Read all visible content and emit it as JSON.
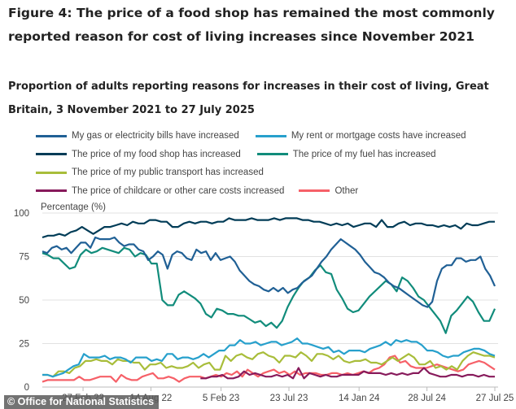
{
  "title": "Figure 4: The price of a food shop has remained the most commonly reported reason for cost of living increases since November 2021",
  "subtitle": "Proportion of adults reporting reasons for increases in their cost of living, Great Britain, 3 November 2021 to 27 July 2025",
  "credit": "© Office for National Statistics",
  "chart_data": {
    "type": "line",
    "title": "Proportion of adults reporting reasons for increases in their cost of living, Great Britain, 3 November 2021 to 27 July 2025",
    "ylabel": "Percentage (%)",
    "xlabel": "",
    "ylim": [
      0,
      100
    ],
    "yticks": [
      0,
      25,
      50,
      75,
      100
    ],
    "xticks": [
      "27 Feb 22",
      "14 Aug 22",
      "5 Feb 23",
      "23 Jul 23",
      "14 Jan 24",
      "28 Jul 24",
      "27 Jul 25"
    ],
    "xtick_positions": [
      0.09,
      0.24,
      0.395,
      0.545,
      0.7,
      0.85,
      1.0
    ],
    "grid": true,
    "legend_position": "top",
    "series": [
      {
        "name": "My gas or electricity bills have increased",
        "color": "#206095",
        "values": [
          78,
          77,
          80,
          81,
          79,
          80,
          77,
          80,
          83,
          83,
          80,
          86,
          85,
          85,
          85,
          86,
          83,
          81,
          82,
          82,
          79,
          78,
          73,
          75,
          78,
          76,
          68,
          76,
          78,
          77,
          74,
          73,
          79,
          77,
          78,
          73,
          77,
          73,
          74,
          75,
          72,
          67,
          64,
          61,
          59,
          58,
          56,
          55,
          57,
          55,
          57,
          54,
          56,
          57,
          60,
          62,
          64,
          68,
          72,
          75,
          79,
          82,
          85,
          83,
          81,
          79,
          76,
          72,
          69,
          66,
          65,
          63,
          60,
          58,
          57,
          55,
          53,
          51,
          49,
          47,
          46,
          49,
          61,
          68,
          70,
          70,
          74,
          74,
          72,
          73,
          73,
          75,
          68,
          64,
          58
        ]
      },
      {
        "name": "My rent or mortgage costs have increased",
        "color": "#27A0CC",
        "values": [
          7,
          7,
          6,
          7,
          8,
          10,
          12,
          13,
          19,
          17,
          17,
          17,
          18,
          16,
          17,
          17,
          16,
          14,
          17,
          17,
          17,
          15,
          16,
          15,
          19,
          19,
          16,
          17,
          17,
          16,
          17,
          19,
          17,
          19,
          21,
          21,
          24,
          24,
          27,
          25,
          25,
          26,
          24,
          25,
          26,
          26,
          24,
          25,
          26,
          28,
          25,
          25,
          24,
          23,
          22,
          23,
          20,
          21,
          19,
          21,
          21,
          21,
          20,
          22,
          23,
          24,
          26,
          24,
          27,
          26,
          27,
          26,
          26,
          24,
          21,
          21,
          20,
          18,
          17,
          18,
          18,
          20,
          21,
          22,
          22,
          21,
          19,
          18
        ]
      },
      {
        "name": "The price of my food shop has increased",
        "color": "#003C57",
        "values": [
          86,
          87,
          87,
          88,
          87,
          89,
          90,
          92,
          90,
          88,
          90,
          92,
          92,
          93,
          94,
          93,
          95,
          94,
          94,
          96,
          96,
          95,
          95,
          92,
          92,
          94,
          95,
          94,
          95,
          95,
          94,
          95,
          95,
          97,
          96,
          96,
          96,
          97,
          96,
          96,
          96,
          97,
          96,
          97,
          97,
          97,
          96,
          96,
          95,
          95,
          94,
          93,
          94,
          93,
          94,
          92,
          93,
          94,
          94,
          92,
          96,
          92,
          92,
          94,
          95,
          93,
          94,
          94,
          93,
          93,
          92,
          93,
          92,
          93,
          91,
          94,
          93,
          93,
          94,
          95,
          95
        ]
      },
      {
        "name": "The price of my fuel has increased",
        "color": "#118C7B",
        "values": [
          77,
          76,
          74,
          74,
          71,
          68,
          69,
          76,
          79,
          77,
          78,
          80,
          79,
          78,
          77,
          80,
          79,
          75,
          77,
          76,
          71,
          71,
          50,
          47,
          47,
          53,
          55,
          53,
          51,
          48,
          42,
          40,
          45,
          44,
          42,
          42,
          41,
          41,
          39,
          37,
          38,
          35,
          37,
          34,
          38,
          46,
          52,
          57,
          61,
          63,
          67,
          70,
          66,
          65,
          56,
          51,
          45,
          43,
          44,
          48,
          52,
          55,
          58,
          61,
          59,
          55,
          63,
          61,
          57,
          52,
          50,
          46,
          42,
          38,
          31,
          41,
          44,
          48,
          52,
          49,
          43,
          38,
          38,
          45
        ]
      },
      {
        "name": "The price of my public transport has increased",
        "color": "#A8BD3A",
        "values": [
          7,
          7,
          6,
          9,
          9,
          8,
          11,
          12,
          15,
          15,
          16,
          15,
          15,
          13,
          16,
          15,
          15,
          14,
          14,
          10,
          13,
          13,
          14,
          11,
          12,
          11,
          11,
          12,
          14,
          11,
          13,
          14,
          10,
          10,
          18,
          15,
          18,
          19,
          17,
          16,
          19,
          20,
          18,
          17,
          14,
          18,
          18,
          17,
          20,
          18,
          15,
          19,
          19,
          18,
          16,
          18,
          15,
          14,
          15,
          15,
          16,
          14,
          14,
          13,
          15,
          17,
          15,
          17,
          19,
          17,
          13,
          13,
          15,
          11,
          12,
          10,
          12,
          10,
          15,
          18,
          20,
          19,
          18,
          18,
          17
        ]
      },
      {
        "name": "The price of childcare or other care costs increased",
        "color": "#871A5B",
        "values": [
          null,
          null,
          null,
          null,
          null,
          null,
          null,
          null,
          null,
          null,
          null,
          null,
          null,
          null,
          null,
          null,
          null,
          null,
          null,
          null,
          null,
          null,
          null,
          null,
          null,
          null,
          null,
          null,
          null,
          5,
          5,
          6,
          6,
          7,
          5,
          5,
          6,
          9,
          7,
          8,
          7,
          6,
          6,
          7,
          6,
          7,
          5,
          11,
          5,
          8,
          7,
          6,
          7,
          6,
          6,
          7,
          7,
          7,
          7,
          9,
          8,
          8,
          8,
          7,
          8,
          7,
          8,
          7,
          8,
          8,
          11,
          8,
          7,
          6,
          6,
          7,
          7,
          6,
          7,
          7,
          6,
          7,
          6,
          6
        ]
      },
      {
        "name": "Other",
        "color": "#F66068",
        "values": [
          3,
          4,
          4,
          4,
          4,
          4,
          4,
          6,
          4,
          4,
          5,
          6,
          6,
          6,
          3,
          7,
          5,
          4,
          4,
          6,
          7,
          8,
          5,
          5,
          6,
          5,
          3,
          5,
          6,
          6,
          6,
          5,
          6,
          7,
          6,
          8,
          7,
          9,
          6,
          10,
          8,
          6,
          8,
          9,
          10,
          8,
          9,
          7,
          9,
          7,
          8,
          8,
          8,
          7,
          7,
          8,
          8,
          7,
          8,
          7,
          8,
          9,
          8,
          10,
          11,
          13,
          17,
          18,
          14,
          15,
          12,
          11,
          11,
          11,
          12,
          13,
          12,
          11,
          10,
          9,
          10,
          13,
          14,
          15,
          14,
          12,
          10
        ]
      }
    ]
  }
}
